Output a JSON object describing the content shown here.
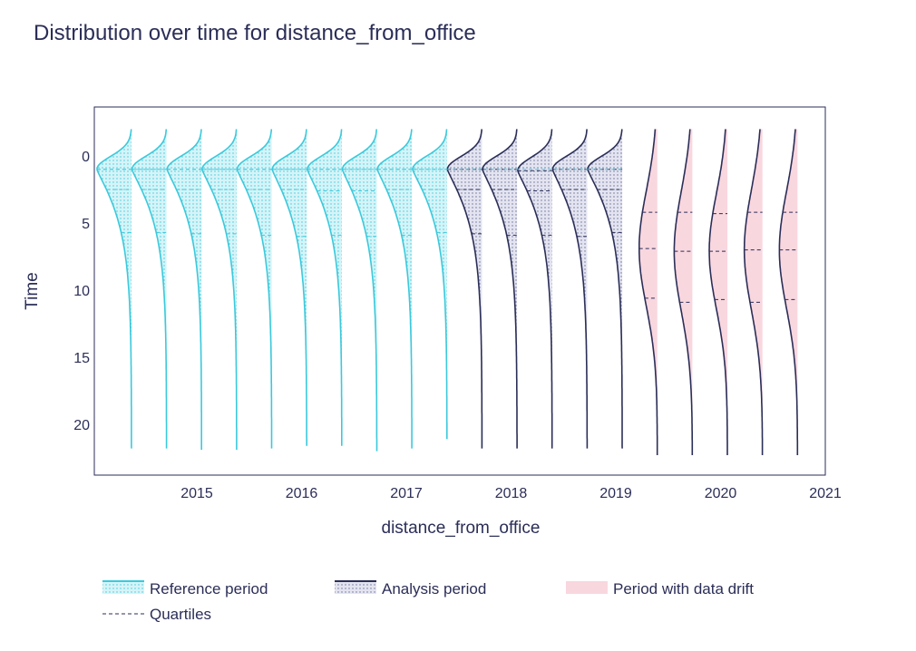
{
  "chart_data": {
    "type": "violin",
    "title": "Distribution over time for distance_from_office",
    "xlabel": "distance_from_office",
    "ylabel": "Time",
    "x_ticks": [
      "2015",
      "2016",
      "2017",
      "2018",
      "2019",
      "2020",
      "2021"
    ],
    "y_ticks": [
      0,
      5,
      10,
      15,
      20
    ],
    "ylim": [
      23.5,
      -3.5
    ],
    "y_reversed": true,
    "grid": false,
    "legend_position": "bottom",
    "colors": {
      "reference": "#3bc9db",
      "reference_fill": "#c6f0f5",
      "analysis": "#2b2e57",
      "analysis_fill": "#d6d8ea",
      "drift_fill": "#f9d7df",
      "drift_edge": "#2b2e57",
      "axis": "#2b2e57"
    },
    "periods": [
      {
        "period": "reference",
        "q1": 1.0,
        "median": 2.5,
        "q3": 5.7,
        "min": -2.0,
        "max": 21.8
      },
      {
        "period": "reference",
        "q1": 1.0,
        "median": 2.5,
        "q3": 5.7,
        "min": -2.0,
        "max": 21.8
      },
      {
        "period": "reference",
        "q1": 1.0,
        "median": 2.5,
        "q3": 5.8,
        "min": -2.0,
        "max": 21.9
      },
      {
        "period": "reference",
        "q1": 1.0,
        "median": 2.5,
        "q3": 5.8,
        "min": -2.0,
        "max": 21.9
      },
      {
        "period": "reference",
        "q1": 1.0,
        "median": 2.5,
        "q3": 5.9,
        "min": -2.0,
        "max": 21.8
      },
      {
        "period": "reference",
        "q1": 1.0,
        "median": 2.5,
        "q3": 6.0,
        "min": -2.0,
        "max": 21.6
      },
      {
        "period": "reference",
        "q1": 1.0,
        "median": 2.6,
        "q3": 5.9,
        "min": -2.0,
        "max": 21.6
      },
      {
        "period": "reference",
        "q1": 1.0,
        "median": 2.6,
        "q3": 6.0,
        "min": -2.0,
        "max": 22.0
      },
      {
        "period": "reference",
        "q1": 1.0,
        "median": 2.5,
        "q3": 5.9,
        "min": -2.0,
        "max": 21.8
      },
      {
        "period": "reference",
        "q1": 1.0,
        "median": 2.5,
        "q3": 5.7,
        "min": -2.0,
        "max": 21.1
      },
      {
        "period": "analysis",
        "q1": 1.0,
        "median": 2.5,
        "q3": 5.8,
        "min": -2.0,
        "max": 21.8
      },
      {
        "period": "analysis",
        "q1": 1.0,
        "median": 2.5,
        "q3": 5.9,
        "min": -2.0,
        "max": 21.8
      },
      {
        "period": "analysis",
        "q1": 1.1,
        "median": 2.6,
        "q3": 5.9,
        "min": -2.0,
        "max": 21.8
      },
      {
        "period": "analysis",
        "q1": 1.0,
        "median": 2.5,
        "q3": 6.0,
        "min": -2.0,
        "max": 21.8
      },
      {
        "period": "analysis",
        "q1": 1.0,
        "median": 2.5,
        "q3": 5.7,
        "min": -2.0,
        "max": 21.8
      },
      {
        "period": "drift",
        "q1": 4.2,
        "median": 6.9,
        "q3": 10.6,
        "min": -2.0,
        "max": 22.3
      },
      {
        "period": "drift",
        "q1": 4.2,
        "median": 7.1,
        "q3": 10.9,
        "min": -2.0,
        "max": 22.3
      },
      {
        "period": "drift",
        "q1": 4.3,
        "median": 7.1,
        "q3": 10.7,
        "min": -2.0,
        "max": 22.3
      },
      {
        "period": "drift",
        "q1": 4.2,
        "median": 7.0,
        "q3": 10.9,
        "min": -2.0,
        "max": 22.3
      },
      {
        "period": "drift",
        "q1": 4.2,
        "median": 7.0,
        "q3": 10.7,
        "min": -2.0,
        "max": 22.3
      }
    ],
    "legend": [
      {
        "key": "reference",
        "label": "Reference period"
      },
      {
        "key": "analysis",
        "label": "Analysis period"
      },
      {
        "key": "drift",
        "label": "Period with data drift"
      },
      {
        "key": "quartiles",
        "label": "Quartiles"
      }
    ]
  }
}
